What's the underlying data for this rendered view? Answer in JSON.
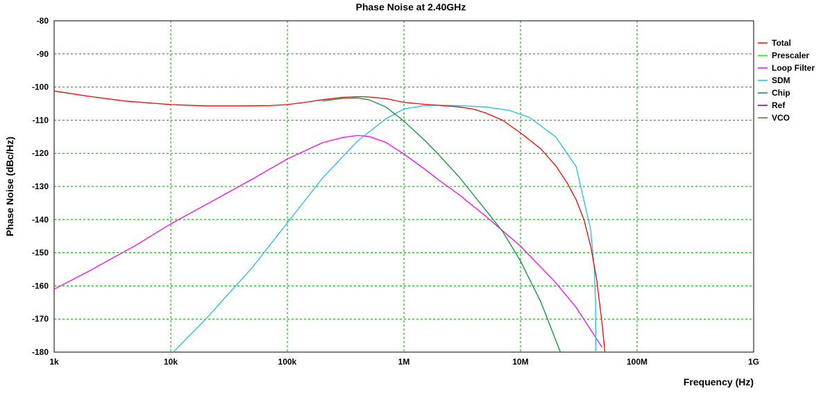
{
  "chart_data": {
    "type": "line",
    "title": "Phase Noise at 2.40GHz",
    "xlabel": "Frequency (Hz)",
    "ylabel": "Phase Noise (dBc/Hz)",
    "x_scale": "log",
    "xlim": [
      1000,
      1000000000
    ],
    "ylim": [
      -180,
      -80
    ],
    "grid": true,
    "legend_position": "right",
    "x_ticks": [
      {
        "value": 1000,
        "label": "1k"
      },
      {
        "value": 10000,
        "label": "10k"
      },
      {
        "value": 100000,
        "label": "100k"
      },
      {
        "value": 1000000,
        "label": "1M"
      },
      {
        "value": 10000000,
        "label": "10M"
      },
      {
        "value": 100000000,
        "label": "100M"
      },
      {
        "value": 1000000000,
        "label": "1G"
      }
    ],
    "y_ticks": [
      {
        "value": -80,
        "label": "-80"
      },
      {
        "value": -90,
        "label": "-90"
      },
      {
        "value": -100,
        "label": "-100"
      },
      {
        "value": -110,
        "label": "-110"
      },
      {
        "value": -120,
        "label": "-120"
      },
      {
        "value": -130,
        "label": "-130"
      },
      {
        "value": -140,
        "label": "-140"
      },
      {
        "value": -150,
        "label": "-150"
      },
      {
        "value": -160,
        "label": "-160"
      },
      {
        "value": -170,
        "label": "-170"
      },
      {
        "value": -180,
        "label": "-180"
      }
    ],
    "series": [
      {
        "name": "Total",
        "color": "#ff0000",
        "x": [
          1000,
          2000,
          4000,
          10000,
          20000,
          40000,
          70000,
          100000,
          150000,
          200000,
          300000,
          400000,
          500000,
          700000,
          1000000,
          1500000,
          2000000,
          3000000,
          4000000,
          5000000,
          7000000,
          10000000,
          15000000,
          20000000,
          25000000,
          30000000,
          35000000,
          40000000,
          45000000,
          50000000,
          53000000
        ],
        "y": [
          -101.2,
          -102.8,
          -104.2,
          -105.3,
          -105.7,
          -105.7,
          -105.6,
          -105.3,
          -104.5,
          -103.8,
          -103.1,
          -102.9,
          -103.0,
          -103.5,
          -104.6,
          -105.2,
          -105.5,
          -106.0,
          -106.7,
          -107.8,
          -110.0,
          -113.8,
          -118.7,
          -123.7,
          -128.8,
          -134.0,
          -140.0,
          -148.0,
          -158.0,
          -171.0,
          -180.0
        ]
      },
      {
        "name": "Prescaler",
        "color": "#00ff00",
        "x": [],
        "y": []
      },
      {
        "name": "Loop Filter",
        "color": "#ff00ff",
        "x": [
          1000,
          2000,
          5000,
          10000,
          20000,
          50000,
          100000,
          200000,
          300000,
          400000,
          500000,
          700000,
          1000000,
          1500000,
          2000000,
          3000000,
          5000000,
          7000000,
          10000000,
          20000000,
          30000000,
          50000000
        ],
        "y": [
          -161.0,
          -155.5,
          -147.8,
          -141.3,
          -135.5,
          -127.8,
          -121.7,
          -116.8,
          -115.2,
          -114.6,
          -114.9,
          -116.7,
          -120.2,
          -124.7,
          -128.1,
          -132.6,
          -138.9,
          -143.3,
          -148.0,
          -159.0,
          -166.5,
          -178.5
        ]
      },
      {
        "name": "SDM",
        "color": "#1ec0e8",
        "x": [
          10500,
          20000,
          50000,
          100000,
          200000,
          400000,
          700000,
          1000000,
          1500000,
          2000000,
          3000000,
          5000000,
          8000000,
          12000000,
          20000000,
          30000000,
          40000000,
          43000000,
          44000000,
          44300000
        ],
        "y": [
          -180.0,
          -170.0,
          -154.5,
          -141.0,
          -127.5,
          -116.3,
          -109.6,
          -106.6,
          -105.6,
          -105.5,
          -105.6,
          -106.0,
          -107.0,
          -109.2,
          -115.0,
          -124.0,
          -143.0,
          -155.0,
          -165.0,
          -180.0
        ]
      },
      {
        "name": "Chip",
        "color": "#009933",
        "x": [
          200000,
          300000,
          400000,
          500000,
          700000,
          1000000,
          1500000,
          2000000,
          3000000,
          5000000,
          7000000,
          10000000,
          15000000,
          22000000
        ],
        "y": [
          -104.2,
          -103.4,
          -103.3,
          -103.8,
          -106.0,
          -110.3,
          -116.0,
          -120.5,
          -127.3,
          -137.0,
          -143.5,
          -152.5,
          -165.0,
          -180.0
        ]
      },
      {
        "name": "Ref",
        "color": "#7f007f",
        "x": [],
        "y": []
      },
      {
        "name": "VCO",
        "color": "#8b5a2b",
        "x": [],
        "y": []
      }
    ]
  }
}
